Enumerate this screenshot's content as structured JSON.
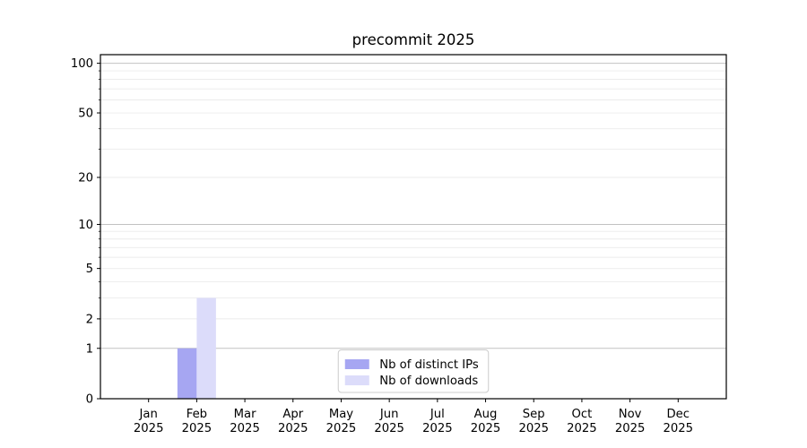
{
  "chart_data": {
    "type": "bar",
    "title": "precommit 2025",
    "xlabel": "",
    "ylabel": "",
    "year": "2025",
    "categories": [
      "Jan",
      "Feb",
      "Mar",
      "Apr",
      "May",
      "Jun",
      "Jul",
      "Aug",
      "Sep",
      "Oct",
      "Nov",
      "Dec"
    ],
    "series": [
      {
        "name": "Nb of distinct IPs",
        "color": "#a6a6f2",
        "values": [
          0,
          1,
          0,
          0,
          0,
          0,
          0,
          0,
          0,
          0,
          0,
          0
        ]
      },
      {
        "name": "Nb of downloads",
        "color": "#dcdcfa",
        "values": [
          0,
          3,
          0,
          0,
          0,
          0,
          0,
          0,
          0,
          0,
          0,
          0
        ]
      }
    ],
    "y_scale": "log1p",
    "y_tick_values": [
      0,
      1,
      2,
      5,
      10,
      20,
      50,
      100
    ],
    "y_major_gridlines": [
      1,
      10,
      100
    ],
    "y_minor_gridlines": [
      2,
      3,
      4,
      5,
      6,
      7,
      8,
      9,
      20,
      30,
      40,
      50,
      60,
      70,
      80,
      90
    ],
    "ylim": [
      0,
      113
    ],
    "grid": true,
    "legend_position": "lower center",
    "legend_entries": [
      "Nb of distinct IPs",
      "Nb of downloads"
    ],
    "style": {
      "major_grid_color": "#c2c2c2",
      "minor_grid_color": "#ebebeb",
      "spine_color": "#000000",
      "legend_border_color": "#cccccc",
      "legend_bg_color": "#ffffff",
      "text_color": "#000000"
    }
  }
}
